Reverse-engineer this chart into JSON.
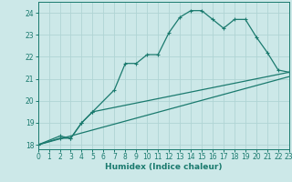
{
  "title": "",
  "xlabel": "Humidex (Indice chaleur)",
  "xlim": [
    0,
    23
  ],
  "ylim": [
    17.8,
    24.5
  ],
  "yticks": [
    18,
    19,
    20,
    21,
    22,
    23,
    24
  ],
  "xticks": [
    0,
    1,
    2,
    3,
    4,
    5,
    6,
    7,
    8,
    9,
    10,
    11,
    12,
    13,
    14,
    15,
    16,
    17,
    18,
    19,
    20,
    21,
    22,
    23
  ],
  "bg_color": "#cce8e8",
  "grid_color": "#b0d4d4",
  "line_color": "#1a7a6e",
  "line1_x": [
    0,
    2,
    3,
    4,
    5,
    7,
    8,
    9,
    10,
    11,
    12,
    13,
    14,
    15,
    16,
    17,
    18,
    19,
    20,
    21,
    22,
    23
  ],
  "line1_y": [
    18.0,
    18.3,
    18.3,
    19.0,
    19.5,
    20.5,
    21.7,
    21.7,
    22.1,
    22.1,
    23.1,
    23.8,
    24.1,
    24.1,
    23.7,
    23.3,
    23.7,
    23.7,
    22.9,
    22.2,
    21.4,
    21.3
  ],
  "line2_x": [
    0,
    2,
    3,
    4,
    5,
    23
  ],
  "line2_y": [
    18.0,
    18.4,
    18.3,
    19.0,
    19.5,
    21.3
  ],
  "line3_x": [
    0,
    23
  ],
  "line3_y": [
    18.0,
    21.1
  ],
  "xlabel_fontsize": 6.5,
  "tick_fontsize": 5.5,
  "linewidth": 0.9,
  "marker_size": 2.5
}
